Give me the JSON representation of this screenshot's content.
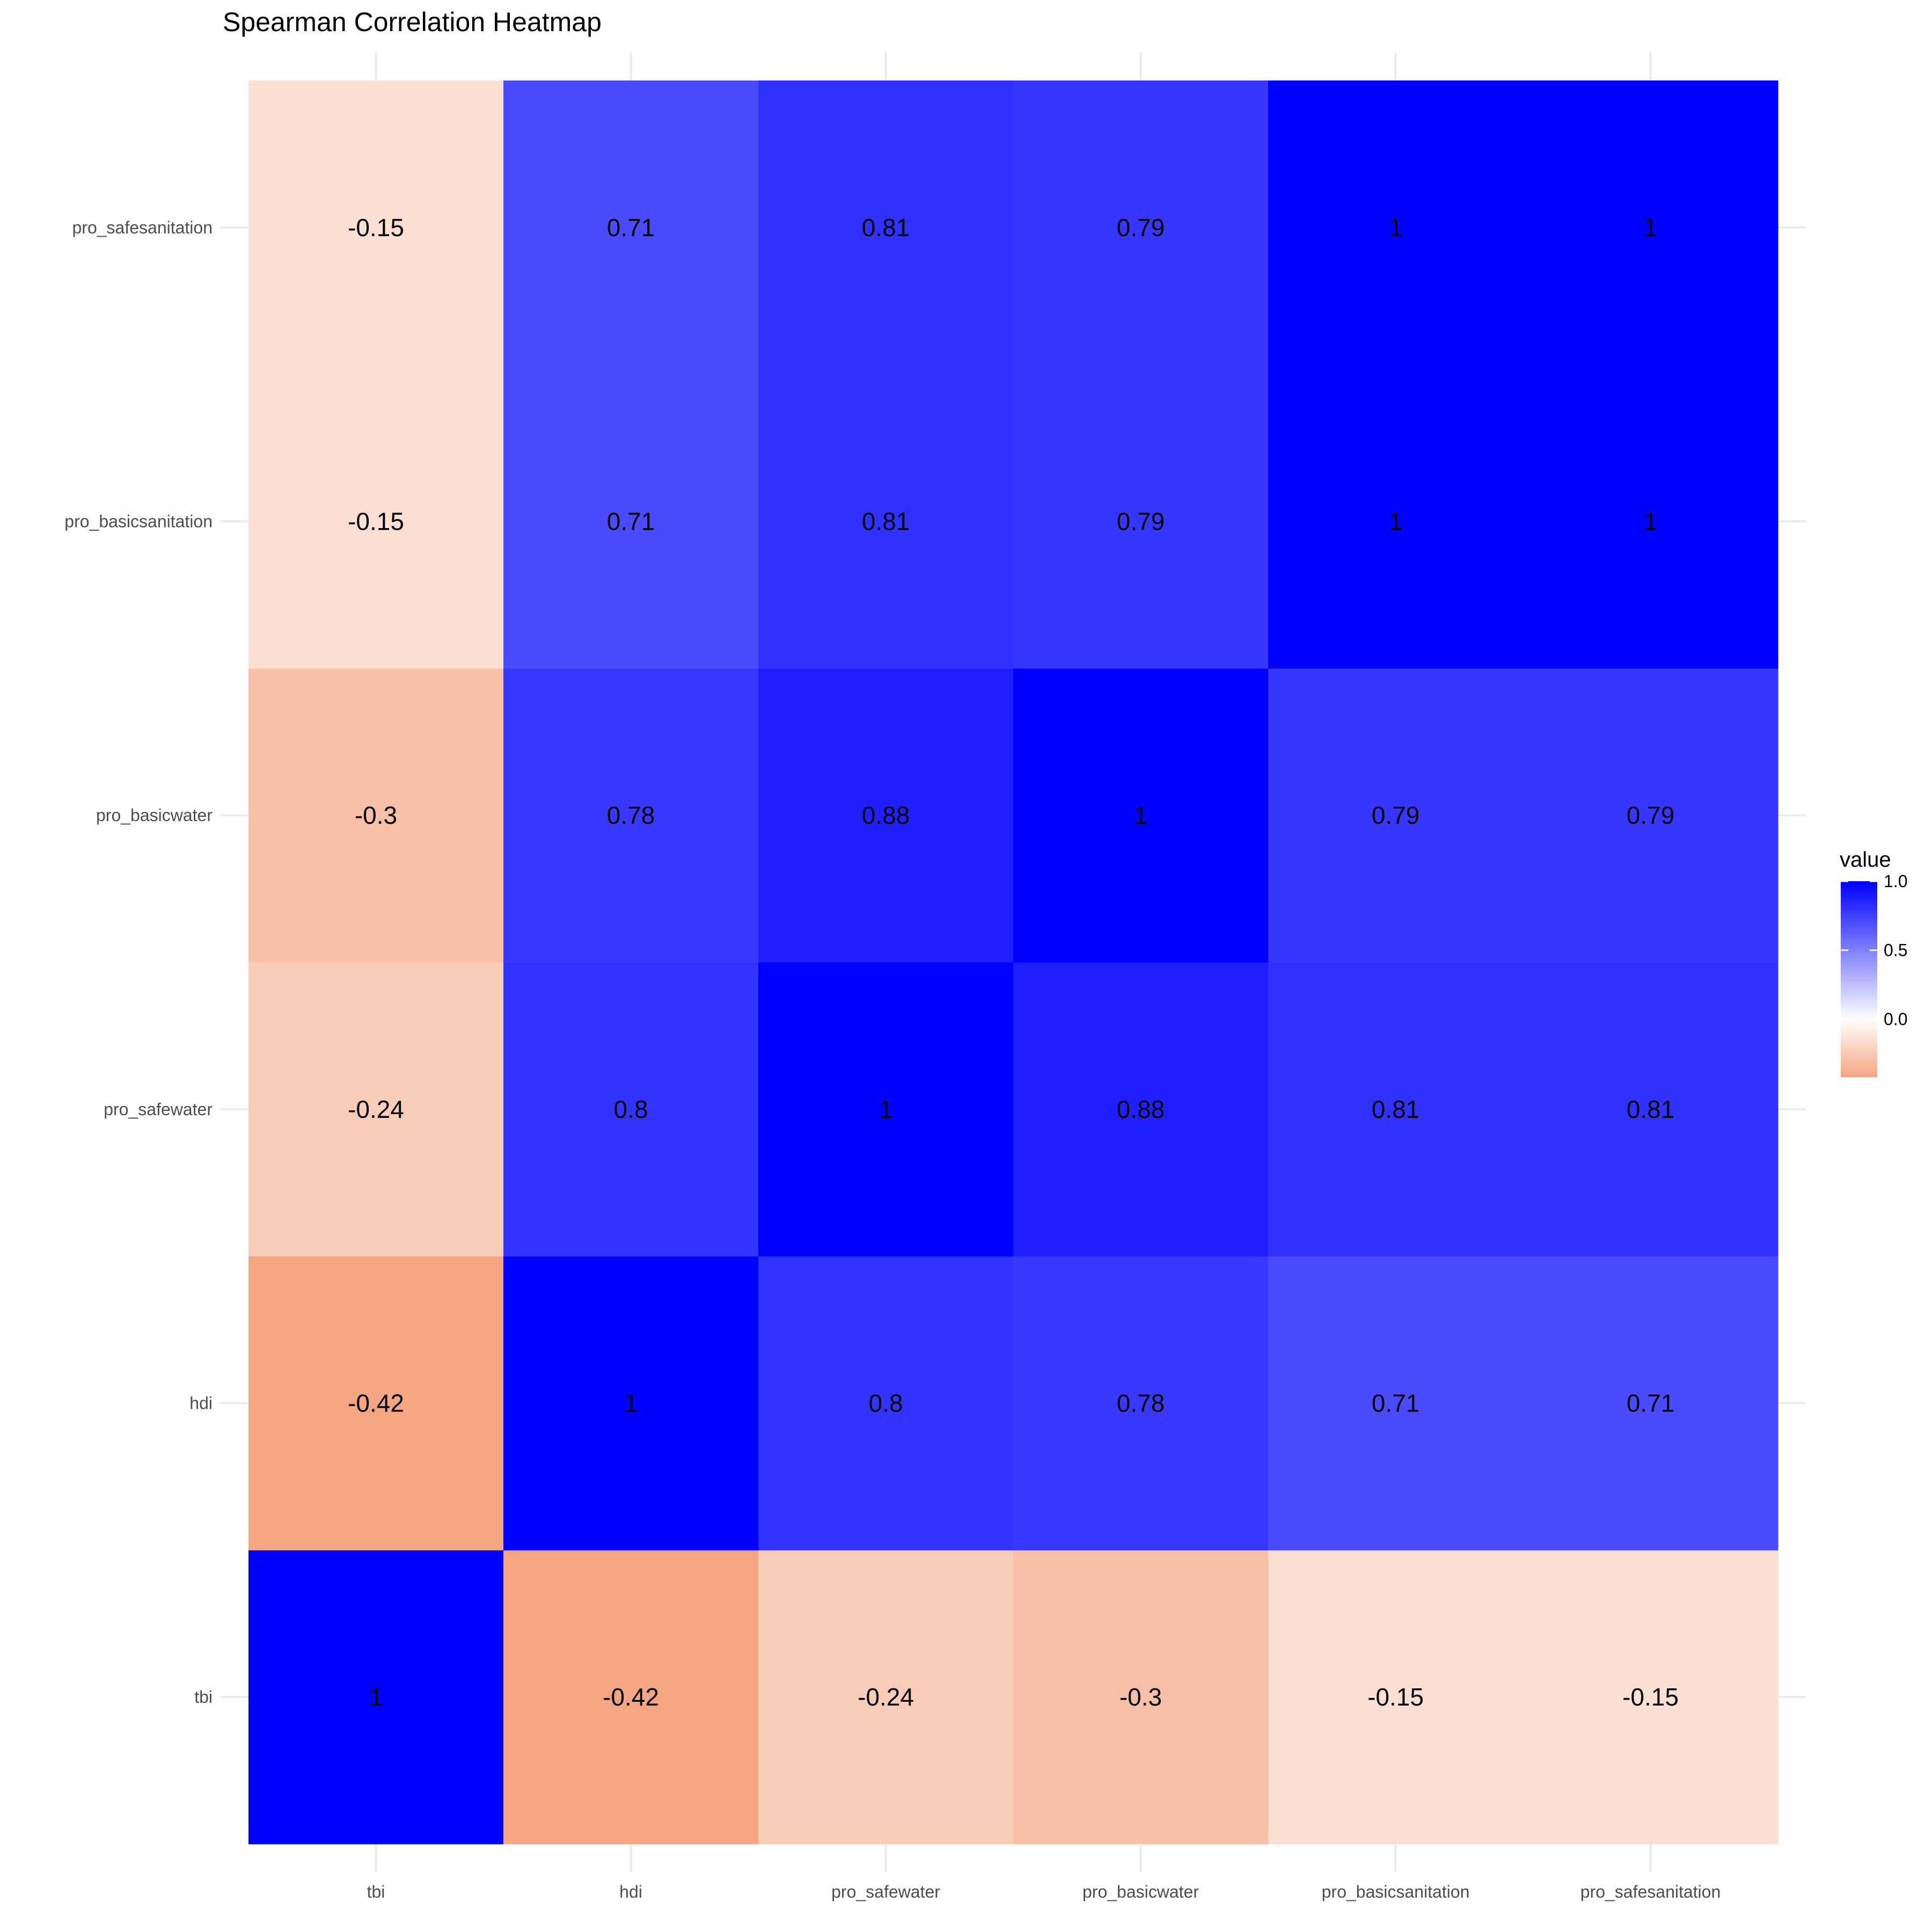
{
  "chart_data": {
    "type": "heatmap",
    "title": "Spearman Correlation Heatmap",
    "x_categories": [
      "tbi",
      "hdi",
      "pro_safewater",
      "pro_basicwater",
      "pro_basicsanitation",
      "pro_safesanitation"
    ],
    "y_categories": [
      "tbi",
      "hdi",
      "pro_safewater",
      "pro_basicwater",
      "pro_basicsanitation",
      "pro_safesanitation"
    ],
    "values": [
      [
        1,
        -0.42,
        -0.24,
        -0.3,
        -0.15,
        -0.15
      ],
      [
        -0.42,
        1,
        0.8,
        0.78,
        0.71,
        0.71
      ],
      [
        -0.24,
        0.8,
        1,
        0.88,
        0.81,
        0.81
      ],
      [
        -0.3,
        0.78,
        0.88,
        1,
        0.79,
        0.79
      ],
      [
        -0.15,
        0.71,
        0.81,
        0.79,
        1,
        1
      ],
      [
        -0.15,
        0.71,
        0.81,
        0.79,
        1,
        1
      ]
    ],
    "cell_labels": [
      [
        "1",
        "-0.42",
        "-0.24",
        "-0.3",
        "-0.15",
        "-0.15"
      ],
      [
        "-0.42",
        "1",
        "0.8",
        "0.78",
        "0.71",
        "0.71"
      ],
      [
        "-0.24",
        "0.8",
        "1",
        "0.88",
        "0.81",
        "0.81"
      ],
      [
        "-0.3",
        "0.78",
        "0.88",
        "1",
        "0.79",
        "0.79"
      ],
      [
        "-0.15",
        "0.71",
        "0.81",
        "0.79",
        "1",
        "1"
      ],
      [
        "-0.15",
        "0.71",
        "0.81",
        "0.79",
        "1",
        "1"
      ]
    ],
    "color_scale": {
      "low": "#f4a582",
      "mid": "#ffffff",
      "high": "#0000ff",
      "min": -0.42,
      "midpoint": 0,
      "max": 1
    },
    "legend": {
      "title": "value",
      "ticks": [
        "1.0",
        "0.5",
        "0.0"
      ],
      "tick_values": [
        1.0,
        0.5,
        0.0
      ],
      "position": "right"
    },
    "grid": true,
    "xlabel": "",
    "ylabel": ""
  }
}
